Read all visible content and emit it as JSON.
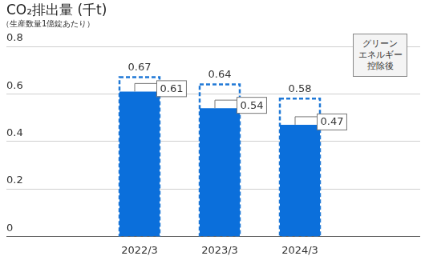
{
  "chart_data": {
    "type": "bar",
    "title": "CO₂排出量 (千t)",
    "subtitle": "（生産数量1億錠あたり）",
    "categories": [
      "2022/3",
      "2023/3",
      "2024/3"
    ],
    "series": [
      {
        "values": [
          0.67,
          0.64,
          0.58
        ],
        "color": "#1f78d6",
        "line_style": "dashed"
      },
      {
        "name": "グリーン\nエネルギー\n控除後",
        "values": [
          0.61,
          0.54,
          0.47
        ],
        "color": "#0b6fdb",
        "line_style": "solid"
      }
    ],
    "ylim": [
      0,
      0.8
    ],
    "yticks": [
      0,
      0.2,
      0.4,
      0.6,
      0.8
    ],
    "grid": true,
    "legend": "upper right",
    "data_labels": true
  }
}
